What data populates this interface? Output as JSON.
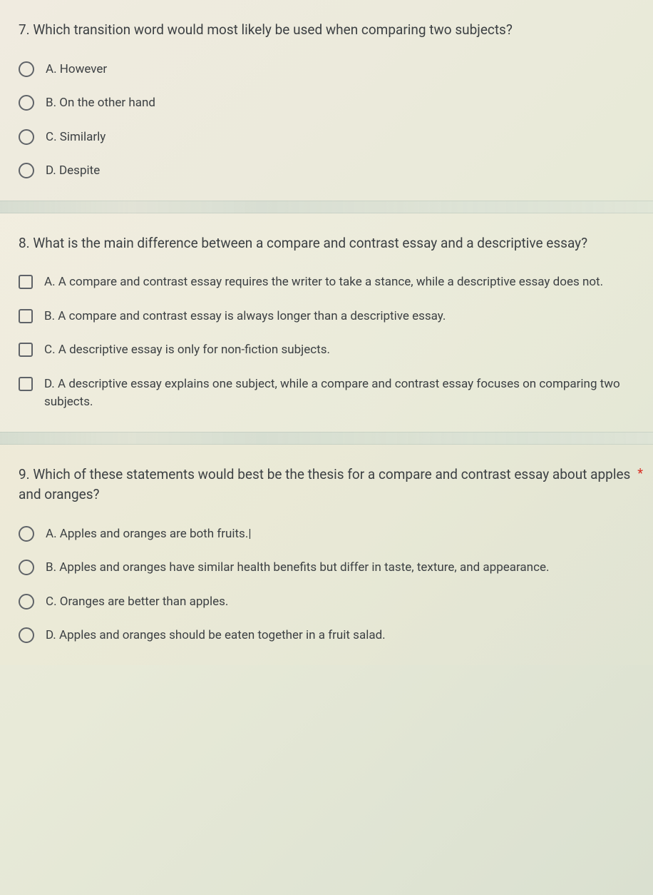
{
  "questions": [
    {
      "text": "7. Which transition word would most likely be used when comparing two subjects?",
      "type": "radio",
      "required": false,
      "options": [
        "A. However",
        "B. On the other hand",
        "C. Similarly",
        "D. Despite"
      ]
    },
    {
      "text": "8. What is the main difference between a compare and contrast essay and a descriptive essay?",
      "type": "checkbox",
      "required": false,
      "options": [
        "A. A compare and contrast essay requires the writer to take a stance, while a descriptive essay does not.",
        "B. A compare and contrast essay is always longer than a descriptive essay.",
        "C. A descriptive essay is only for non-fiction subjects.",
        "D. A descriptive essay explains one subject, while a compare and contrast essay focuses on comparing two subjects."
      ]
    },
    {
      "text": "9. Which of these statements would best be the thesis for a compare and contrast essay about apples and oranges?",
      "type": "radio",
      "required": true,
      "options": [
        "A. Apples and oranges are both fruits.|",
        "B. Apples and oranges have similar health benefits but differ in taste, texture, and appearance.",
        "C. Oranges are better than apples.",
        "D. Apples and oranges should be eaten together in a fruit salad."
      ]
    }
  ],
  "colors": {
    "text_primary": "#3c4043",
    "control_border": "#5f6368",
    "required": "#d93025"
  }
}
